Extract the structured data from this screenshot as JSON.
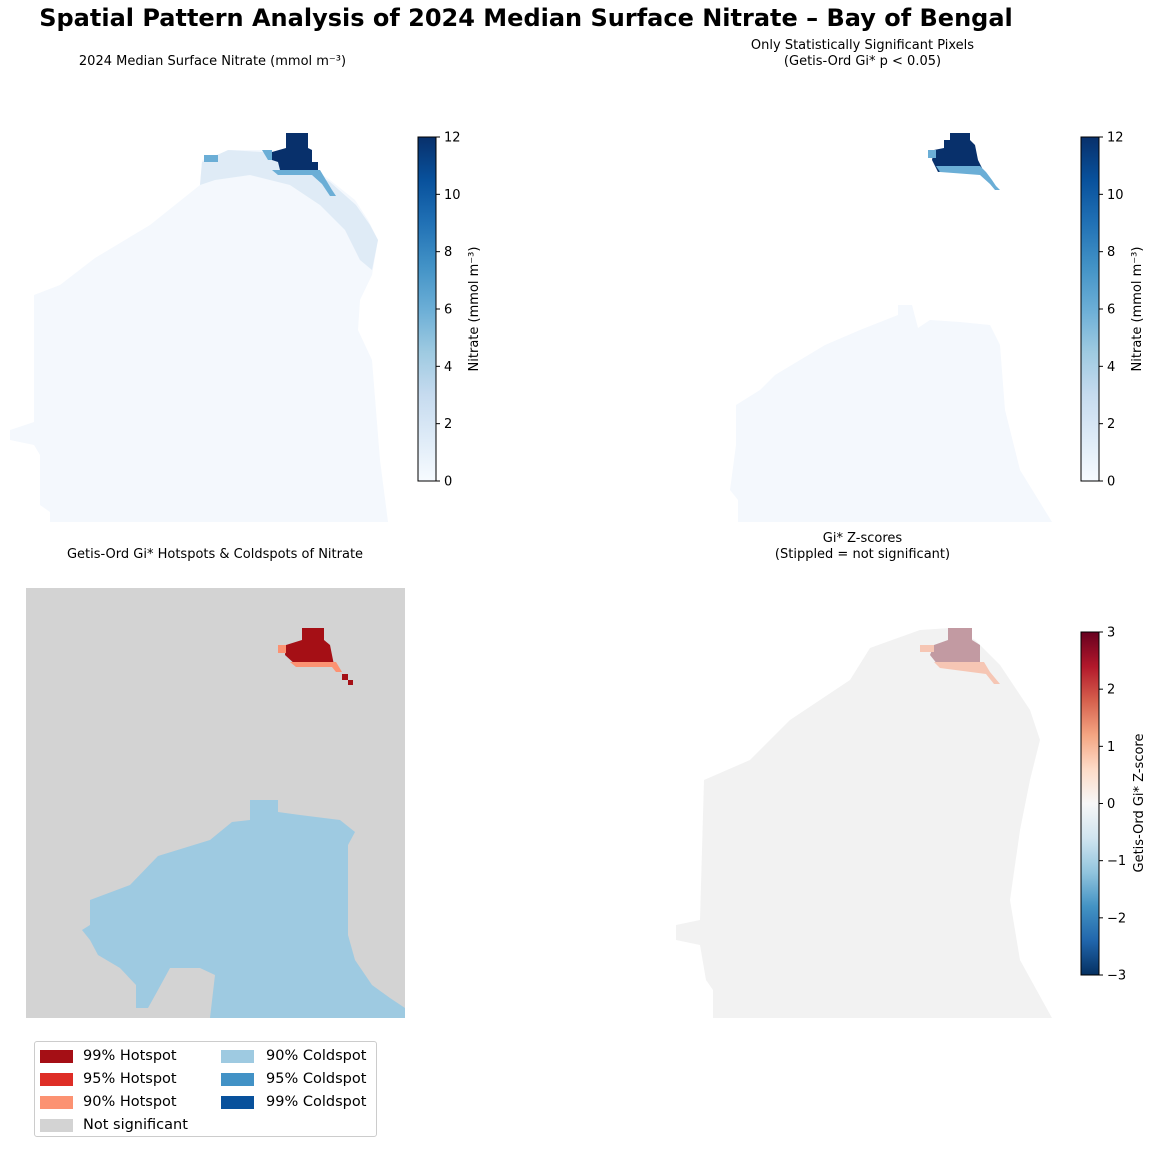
{
  "suptitle": "Spatial Pattern Analysis of 2024 Median Surface Nitrate – Bay of Bengal",
  "panels": {
    "p1": {
      "title": "2024 Median Surface Nitrate (mmol m⁻³)"
    },
    "p2": {
      "title": "Only Statistically Significant Pixels\n(Getis-Ord Gi* p < 0.05)"
    },
    "p3": {
      "title": "Getis-Ord Gi* Hotspots & Coldspots of Nitrate"
    },
    "p4": {
      "title": "Gi* Z-scores\n(Stippled = not significant)"
    }
  },
  "colorbars": {
    "nitrate": {
      "label": "Nitrate (mmol m⁻³)",
      "ticks": [
        "0",
        "2",
        "4",
        "6",
        "8",
        "10",
        "12"
      ],
      "range": [
        0,
        12
      ],
      "cmap": "Blues"
    },
    "zscore": {
      "label": "Getis-Ord Gi* Z-score",
      "ticks": [
        "−3",
        "−2",
        "−1",
        "0",
        "1",
        "2",
        "3"
      ],
      "range": [
        -3,
        3
      ],
      "cmap": "RdBu_r"
    }
  },
  "legend": {
    "items": [
      {
        "label": "99% Hotspot",
        "color": "#a50f15"
      },
      {
        "label": "95% Hotspot",
        "color": "#de2d26"
      },
      {
        "label": "90% Hotspot",
        "color": "#fc9272"
      },
      {
        "label": "Not significant",
        "color": "#d3d3d3"
      },
      {
        "label": "90% Coldspot",
        "color": "#9ecae1"
      },
      {
        "label": "95% Coldspot",
        "color": "#4292c6"
      },
      {
        "label": "99% Coldspot",
        "color": "#08519c"
      }
    ]
  },
  "chart_data": [
    {
      "type": "heatmap",
      "title": "2024 Median Surface Nitrate (mmol m⁻³)",
      "colorbar_label": "Nitrate (mmol m⁻³)",
      "vmin": 0,
      "vmax": 12,
      "cmap": "Blues",
      "hotspot_max": 12,
      "background": 0.3
    },
    {
      "type": "heatmap",
      "title": "Only Statistically Significant Pixels\n(Getis-Ord Gi* p < 0.05)",
      "colorbar_label": "Nitrate (mmol m⁻³)",
      "vmin": 0,
      "vmax": 12,
      "cmap": "Blues"
    },
    {
      "type": "heatmap",
      "title": "Getis-Ord Gi* Hotspots & Coldspots of Nitrate",
      "categories": [
        "99% Hotspot",
        "95% Hotspot",
        "90% Hotspot",
        "Not significant",
        "90% Coldspot",
        "95% Coldspot",
        "99% Coldspot"
      ]
    },
    {
      "type": "heatmap",
      "title": "Gi* Z-scores\n(Stippled = not significant)",
      "colorbar_label": "Getis-Ord Gi* Z-score",
      "vmin": -3,
      "vmax": 3,
      "cmap": "RdBu_r"
    }
  ]
}
